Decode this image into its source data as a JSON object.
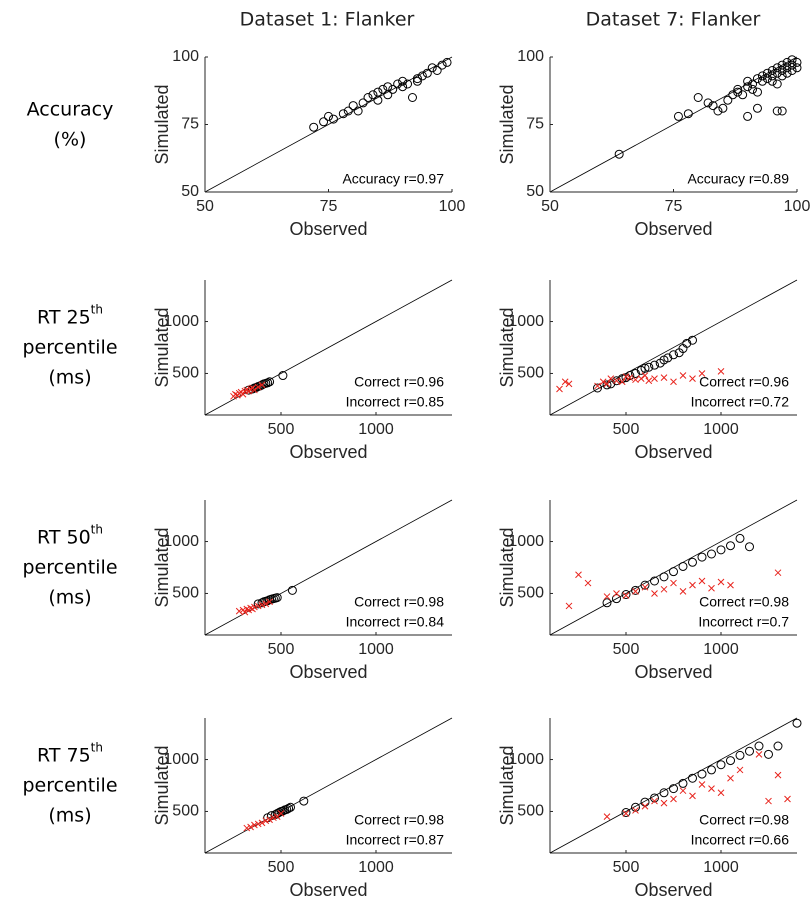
{
  "column_titles": [
    "Dataset 1: Flanker",
    "Dataset 7: Flanker"
  ],
  "row_labels": [
    {
      "lines": [
        "Accuracy",
        "(%)"
      ]
    },
    {
      "lines": [
        "RT 25",
        "percentile",
        "(ms)"
      ],
      "sup": "th"
    },
    {
      "lines": [
        "RT 50",
        "percentile",
        "(ms)"
      ],
      "sup": "th"
    },
    {
      "lines": [
        "RT 75",
        "percentile",
        "(ms)"
      ],
      "sup": "th"
    }
  ],
  "chart_data": [
    {
      "type": "scatter",
      "xlabel": "Observed",
      "ylabel": "Simulated",
      "xlim": [
        50,
        100
      ],
      "ylim": [
        50,
        100
      ],
      "xticks": [
        50,
        75,
        100
      ],
      "yticks": [
        50,
        75,
        100
      ],
      "annotations": [
        "Accuracy r=0.97"
      ],
      "series": [
        {
          "color": "#000000",
          "marker": "o",
          "x": [
            72,
            74,
            75,
            76,
            78,
            79,
            80,
            81,
            82,
            83,
            84,
            85,
            85,
            86,
            87,
            87,
            88,
            89,
            90,
            90,
            91,
            92,
            93,
            93,
            94,
            95,
            96,
            97,
            98,
            99
          ],
          "values": [
            74,
            76,
            78,
            77,
            79,
            80,
            82,
            80,
            83,
            85,
            86,
            84,
            87,
            88,
            86,
            89,
            88,
            90,
            89,
            91,
            90,
            85,
            91,
            92,
            93,
            94,
            96,
            95,
            97,
            98
          ]
        }
      ]
    },
    {
      "type": "scatter",
      "xlabel": "Observed",
      "ylabel": "Simulated",
      "xlim": [
        50,
        100
      ],
      "ylim": [
        50,
        100
      ],
      "xticks": [
        50,
        75,
        100
      ],
      "yticks": [
        50,
        75,
        100
      ],
      "annotations": [
        "Accuracy r=0.89"
      ],
      "series": [
        {
          "color": "#000000",
          "marker": "o",
          "x": [
            64,
            76,
            78,
            80,
            82,
            83,
            84,
            85,
            86,
            87,
            88,
            88,
            89,
            90,
            90,
            91,
            91,
            92,
            92,
            93,
            93,
            94,
            94,
            95,
            95,
            95,
            96,
            96,
            96,
            97,
            97,
            97,
            98,
            98,
            98,
            99,
            99,
            99,
            100,
            100,
            90,
            92,
            96,
            97
          ],
          "values": [
            64,
            78,
            79,
            85,
            83,
            82,
            80,
            81,
            84,
            86,
            87,
            88,
            86,
            89,
            91,
            88,
            90,
            92,
            87,
            91,
            93,
            92,
            94,
            93,
            95,
            91,
            94,
            96,
            90,
            95,
            97,
            93,
            96,
            98,
            94,
            97,
            99,
            95,
            98,
            96,
            78,
            81,
            80,
            80
          ]
        }
      ]
    },
    {
      "type": "scatter",
      "xlabel": "Observed",
      "ylabel": "Simulated",
      "xlim": [
        100,
        1400
      ],
      "ylim": [
        100,
        1400
      ],
      "xticks": [
        500,
        1000
      ],
      "yticks": [
        500,
        1000
      ],
      "annotations": [
        "Correct r=0.96",
        "Incorrect r=0.85"
      ],
      "series": [
        {
          "color": "#000000",
          "marker": "o",
          "x": [
            330,
            350,
            360,
            370,
            380,
            390,
            400,
            410,
            420,
            430,
            440,
            510
          ],
          "values": [
            340,
            350,
            360,
            365,
            375,
            380,
            390,
            400,
            405,
            410,
            420,
            480
          ]
        },
        {
          "color": "#e8231c",
          "marker": "x",
          "x": [
            250,
            260,
            270,
            280,
            290,
            300,
            310,
            320,
            330,
            340,
            350,
            360,
            380,
            400
          ],
          "values": [
            280,
            300,
            290,
            310,
            320,
            300,
            330,
            340,
            330,
            350,
            360,
            340,
            370,
            390
          ]
        }
      ]
    },
    {
      "type": "scatter",
      "xlabel": "Observed",
      "ylabel": "Simulated",
      "xlim": [
        100,
        1400
      ],
      "ylim": [
        100,
        1400
      ],
      "xticks": [
        500,
        1000
      ],
      "yticks": [
        500,
        1000
      ],
      "annotations": [
        "Correct r=0.96",
        "Incorrect r=0.72"
      ],
      "series": [
        {
          "color": "#000000",
          "marker": "o",
          "x": [
            350,
            400,
            420,
            450,
            480,
            500,
            520,
            550,
            580,
            600,
            620,
            650,
            680,
            700,
            720,
            750,
            780,
            800,
            820,
            850
          ],
          "values": [
            360,
            390,
            400,
            430,
            450,
            460,
            480,
            500,
            530,
            550,
            560,
            580,
            600,
            630,
            650,
            680,
            700,
            740,
            790,
            820
          ]
        },
        {
          "color": "#e8231c",
          "marker": "x",
          "x": [
            150,
            180,
            200,
            350,
            380,
            400,
            420,
            450,
            480,
            500,
            520,
            550,
            580,
            600,
            620,
            650,
            700,
            750,
            800,
            850,
            900,
            1000
          ],
          "values": [
            350,
            420,
            400,
            380,
            420,
            400,
            450,
            430,
            420,
            470,
            460,
            440,
            450,
            480,
            430,
            450,
            460,
            420,
            480,
            450,
            500,
            520
          ]
        }
      ]
    },
    {
      "type": "scatter",
      "xlabel": "Observed",
      "ylabel": "Simulated",
      "xlim": [
        100,
        1400
      ],
      "ylim": [
        100,
        1400
      ],
      "xticks": [
        500,
        1000
      ],
      "yticks": [
        500,
        1000
      ],
      "annotations": [
        "Correct r=0.98",
        "Incorrect r=0.84"
      ],
      "series": [
        {
          "color": "#000000",
          "marker": "o",
          "x": [
            380,
            400,
            410,
            420,
            430,
            440,
            450,
            460,
            470,
            480,
            560
          ],
          "values": [
            400,
            410,
            420,
            425,
            430,
            440,
            445,
            450,
            455,
            460,
            530
          ]
        },
        {
          "color": "#e8231c",
          "marker": "x",
          "x": [
            280,
            300,
            310,
            320,
            330,
            340,
            350,
            360,
            380,
            400,
            420,
            440
          ],
          "values": [
            330,
            340,
            320,
            350,
            340,
            360,
            350,
            370,
            380,
            390,
            400,
            420
          ]
        }
      ]
    },
    {
      "type": "scatter",
      "xlabel": "Observed",
      "ylabel": "Simulated",
      "xlim": [
        100,
        1400
      ],
      "ylim": [
        100,
        1400
      ],
      "xticks": [
        500,
        1000
      ],
      "yticks": [
        500,
        1000
      ],
      "annotations": [
        "Correct r=0.98",
        "Incorrect r=0.7"
      ],
      "series": [
        {
          "color": "#000000",
          "marker": "o",
          "x": [
            400,
            450,
            500,
            550,
            600,
            650,
            700,
            750,
            800,
            850,
            900,
            950,
            1000,
            1050,
            1100,
            1150
          ],
          "values": [
            410,
            450,
            490,
            530,
            580,
            620,
            660,
            710,
            760,
            800,
            850,
            880,
            920,
            960,
            1030,
            950
          ]
        },
        {
          "color": "#e8231c",
          "marker": "x",
          "x": [
            200,
            250,
            300,
            400,
            450,
            500,
            550,
            600,
            650,
            700,
            750,
            800,
            850,
            900,
            950,
            1000,
            1050,
            1300
          ],
          "values": [
            380,
            680,
            600,
            470,
            500,
            480,
            520,
            560,
            500,
            540,
            600,
            520,
            580,
            620,
            550,
            610,
            580,
            700
          ]
        }
      ]
    },
    {
      "type": "scatter",
      "xlabel": "Observed",
      "ylabel": "Simulated",
      "xlim": [
        100,
        1400
      ],
      "ylim": [
        100,
        1400
      ],
      "xticks": [
        500,
        1000
      ],
      "yticks": [
        500,
        1000
      ],
      "annotations": [
        "Correct r=0.98",
        "Incorrect r=0.87"
      ],
      "series": [
        {
          "color": "#000000",
          "marker": "o",
          "x": [
            430,
            450,
            470,
            480,
            490,
            500,
            510,
            520,
            530,
            540,
            550,
            620
          ],
          "values": [
            440,
            460,
            470,
            480,
            490,
            500,
            505,
            515,
            520,
            530,
            540,
            600
          ]
        },
        {
          "color": "#e8231c",
          "marker": "x",
          "x": [
            320,
            340,
            360,
            380,
            400,
            420,
            440,
            460,
            480,
            500
          ],
          "values": [
            340,
            350,
            370,
            380,
            390,
            410,
            420,
            440,
            450,
            480
          ]
        }
      ]
    },
    {
      "type": "scatter",
      "xlabel": "Observed",
      "ylabel": "Simulated",
      "xlim": [
        100,
        1400
      ],
      "ylim": [
        100,
        1400
      ],
      "xticks": [
        500,
        1000
      ],
      "yticks": [
        500,
        1000
      ],
      "annotations": [
        "Correct r=0.98",
        "Incorrect r=0.66"
      ],
      "series": [
        {
          "color": "#000000",
          "marker": "o",
          "x": [
            500,
            550,
            600,
            650,
            700,
            750,
            800,
            850,
            900,
            950,
            1000,
            1050,
            1100,
            1150,
            1200,
            1250,
            1300,
            1400
          ],
          "values": [
            490,
            540,
            590,
            630,
            680,
            720,
            770,
            820,
            860,
            900,
            950,
            990,
            1040,
            1080,
            1130,
            1050,
            1130,
            1350
          ]
        },
        {
          "color": "#e8231c",
          "marker": "x",
          "x": [
            400,
            500,
            550,
            600,
            650,
            700,
            750,
            800,
            850,
            900,
            950,
            1000,
            1050,
            1100,
            1200,
            1250,
            1300,
            1350
          ],
          "values": [
            450,
            480,
            510,
            550,
            600,
            580,
            620,
            700,
            650,
            760,
            720,
            680,
            820,
            900,
            1050,
            600,
            850,
            620
          ]
        }
      ]
    }
  ]
}
